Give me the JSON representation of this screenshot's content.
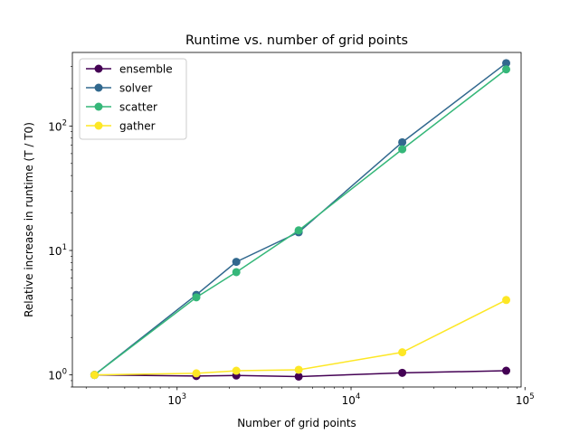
{
  "chart_data": {
    "type": "line",
    "title": "Runtime vs. number of grid points",
    "xlabel": "Number of grid points",
    "ylabel": "Relative increase in runtime (T / T0)",
    "xscale": "log",
    "yscale": "log",
    "xlim": [
      250,
      95000
    ],
    "ylim": [
      0.8,
      390
    ],
    "x": [
      335,
      1290,
      2190,
      5000,
      19700,
      78000
    ],
    "x_ticks": [
      {
        "value": 1000,
        "base": "10",
        "exp": "3"
      },
      {
        "value": 10000,
        "base": "10",
        "exp": "4"
      },
      {
        "value": 100000,
        "base": "10",
        "exp": "5"
      }
    ],
    "y_ticks": [
      {
        "value": 1,
        "base": "10",
        "exp": "0"
      },
      {
        "value": 10,
        "base": "10",
        "exp": "1"
      },
      {
        "value": 100,
        "base": "10",
        "exp": "2"
      }
    ],
    "legend_position": "top-left",
    "series": [
      {
        "name": "ensemble",
        "color": "#440154",
        "values": [
          1.0,
          0.98,
          0.99,
          0.97,
          1.04,
          1.08
        ]
      },
      {
        "name": "solver",
        "color": "#31688e",
        "values": [
          1.0,
          4.4,
          8.1,
          14.0,
          74.0,
          320.0
        ]
      },
      {
        "name": "scatter",
        "color": "#35b779",
        "values": [
          1.0,
          4.2,
          6.7,
          14.5,
          65.0,
          285.0
        ]
      },
      {
        "name": "gather",
        "color": "#fde725",
        "values": [
          1.0,
          1.03,
          1.08,
          1.1,
          1.52,
          4.0
        ]
      }
    ]
  }
}
